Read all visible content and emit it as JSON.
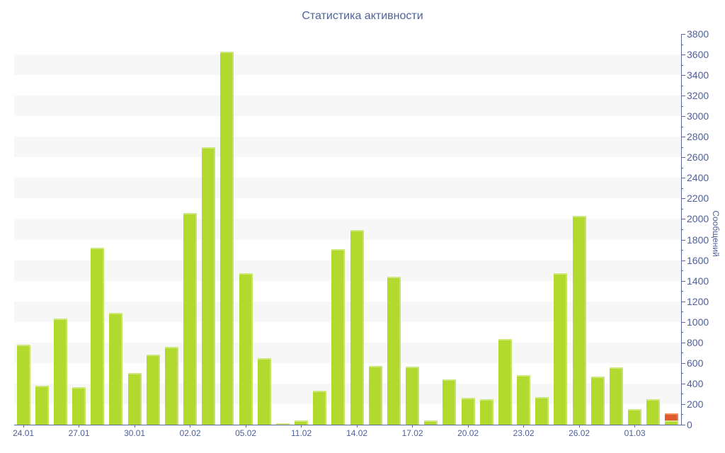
{
  "chart_data": {
    "type": "bar",
    "title": "Статистика активности",
    "ylabel": "Сообщений",
    "xlabel": "",
    "ylim": [
      0,
      3800
    ],
    "ytick_step": 200,
    "yminor_step": 100,
    "legend": "none",
    "grid": "alternating-horizontal-bands",
    "band_color": "#f7f7f7",
    "axis_color": "#5b6aa3",
    "tick_label_color": "#4e5f9a",
    "title_color": "#4d6399",
    "categories": [
      "24.01",
      "",
      "",
      "27.01",
      "",
      "",
      "30.01",
      "",
      "",
      "02.02",
      "",
      "",
      "05.02",
      "",
      "",
      "11.02",
      "",
      "",
      "14.02",
      "",
      "",
      "17.02",
      "",
      "",
      "20.02",
      "",
      "",
      "23.02",
      "",
      "",
      "26.02",
      "",
      "",
      "01.03",
      "",
      ""
    ],
    "series": [
      {
        "name": "series-green",
        "color": "#b1d92e",
        "edge_color": "#cde87d",
        "values": [
          780,
          380,
          1030,
          365,
          1720,
          1090,
          500,
          680,
          760,
          2060,
          2700,
          3630,
          1470,
          650,
          15,
          40,
          330,
          1710,
          1890,
          570,
          1440,
          565,
          40,
          440,
          260,
          250,
          830,
          480,
          270,
          1470,
          2030,
          470,
          560,
          150,
          250,
          40
        ]
      },
      {
        "name": "series-orange",
        "color": "#e2592b",
        "edge_color": "#f0935b",
        "values": [
          0,
          0,
          0,
          0,
          0,
          0,
          0,
          0,
          0,
          0,
          0,
          0,
          0,
          0,
          0,
          0,
          0,
          0,
          0,
          0,
          0,
          0,
          0,
          0,
          0,
          0,
          0,
          0,
          0,
          0,
          0,
          0,
          0,
          0,
          0,
          70
        ]
      }
    ]
  }
}
